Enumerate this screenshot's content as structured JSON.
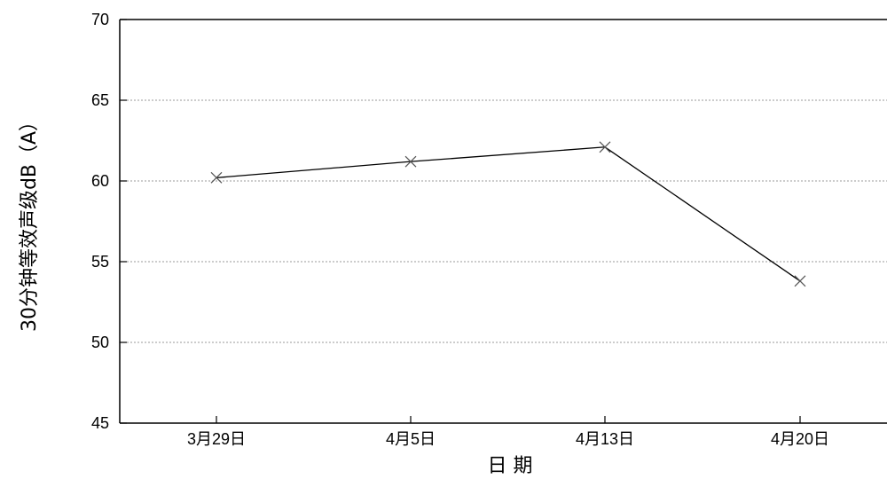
{
  "chart_data": {
    "type": "line",
    "title": "",
    "xlabel": "日 期",
    "ylabel": "30分钟等效声级dB（A）",
    "categories": [
      "3月29日",
      "4月5日",
      "4月13日",
      "4月20日"
    ],
    "series": [
      {
        "values": [
          60.2,
          61.2,
          62.1,
          53.8
        ],
        "marker": "x",
        "color": "#000000"
      }
    ],
    "ylim": [
      45,
      70
    ],
    "yticks": [
      45,
      50,
      55,
      60,
      65,
      70
    ],
    "grid": "horizontal-dotted",
    "legend": "none"
  }
}
